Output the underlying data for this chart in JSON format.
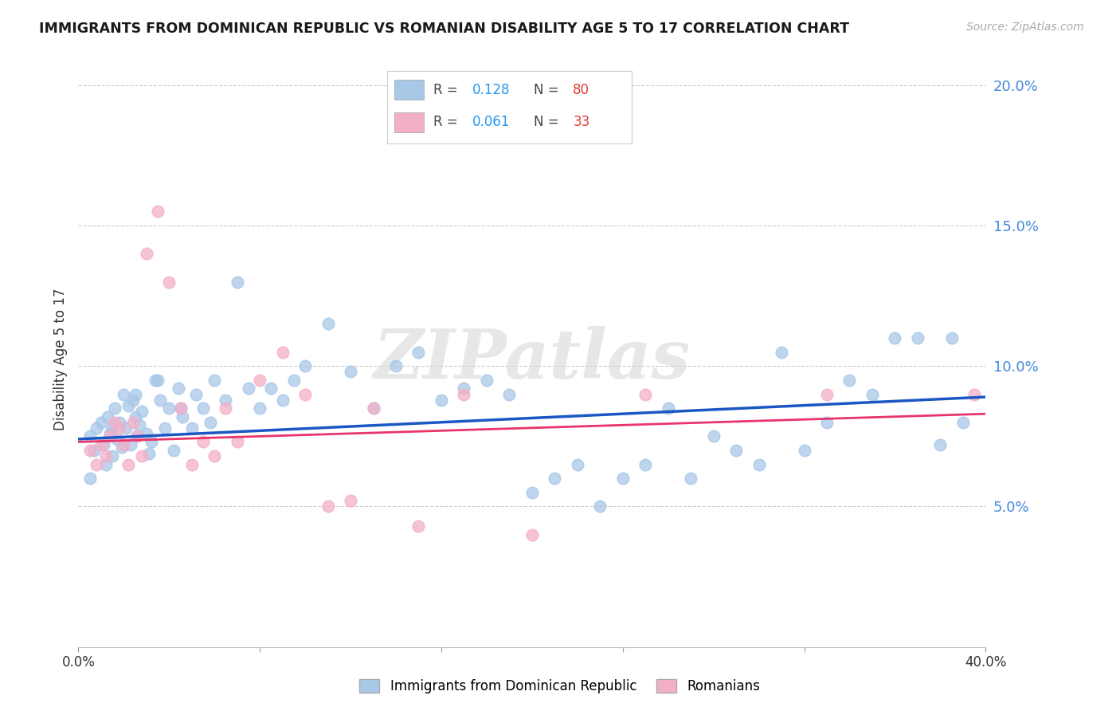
{
  "title": "IMMIGRANTS FROM DOMINICAN REPUBLIC VS ROMANIAN DISABILITY AGE 5 TO 17 CORRELATION CHART",
  "source": "Source: ZipAtlas.com",
  "ylabel": "Disability Age 5 to 17",
  "xlim": [
    0.0,
    0.4
  ],
  "ylim": [
    0.0,
    0.205
  ],
  "yticks": [
    0.05,
    0.1,
    0.15,
    0.2
  ],
  "ytick_labels": [
    "5.0%",
    "10.0%",
    "15.0%",
    "20.0%"
  ],
  "xtick_positions": [
    0.0,
    0.08,
    0.16,
    0.24,
    0.32,
    0.4
  ],
  "xtick_left": "0.0%",
  "xtick_right": "40.0%",
  "color_blue_scatter": "#a8c8e8",
  "color_pink_scatter": "#f4afc8",
  "color_blue_line": "#1a56c4",
  "color_pink_line": "#e8356a",
  "color_yaxis_text": "#4488dd",
  "color_r_value": "#2196F3",
  "color_n_value": "#e53935",
  "watermark": "ZIPatlas",
  "watermark_color": "#d8d8d8",
  "legend_label1": "Immigrants from Dominican Republic",
  "legend_label2": "Romanians",
  "blue_x": [
    0.005,
    0.007,
    0.008,
    0.01,
    0.011,
    0.012,
    0.013,
    0.014,
    0.015,
    0.016,
    0.017,
    0.018,
    0.019,
    0.02,
    0.021,
    0.022,
    0.023,
    0.024,
    0.025,
    0.026,
    0.027,
    0.028,
    0.03,
    0.031,
    0.032,
    0.034,
    0.036,
    0.038,
    0.04,
    0.042,
    0.044,
    0.046,
    0.05,
    0.052,
    0.055,
    0.058,
    0.06,
    0.065,
    0.07,
    0.075,
    0.08,
    0.085,
    0.09,
    0.095,
    0.1,
    0.11,
    0.12,
    0.13,
    0.14,
    0.15,
    0.16,
    0.17,
    0.18,
    0.19,
    0.2,
    0.21,
    0.22,
    0.23,
    0.24,
    0.25,
    0.26,
    0.27,
    0.28,
    0.29,
    0.3,
    0.31,
    0.32,
    0.33,
    0.34,
    0.35,
    0.36,
    0.37,
    0.38,
    0.385,
    0.39,
    0.005,
    0.015,
    0.025,
    0.035,
    0.045
  ],
  "blue_y": [
    0.075,
    0.07,
    0.078,
    0.08,
    0.072,
    0.065,
    0.082,
    0.076,
    0.068,
    0.085,
    0.074,
    0.08,
    0.071,
    0.09,
    0.078,
    0.086,
    0.072,
    0.088,
    0.082,
    0.075,
    0.079,
    0.084,
    0.076,
    0.069,
    0.073,
    0.095,
    0.088,
    0.078,
    0.085,
    0.07,
    0.092,
    0.082,
    0.078,
    0.09,
    0.085,
    0.08,
    0.095,
    0.088,
    0.13,
    0.092,
    0.085,
    0.092,
    0.088,
    0.095,
    0.1,
    0.115,
    0.098,
    0.085,
    0.1,
    0.105,
    0.088,
    0.092,
    0.095,
    0.09,
    0.055,
    0.06,
    0.065,
    0.05,
    0.06,
    0.065,
    0.085,
    0.06,
    0.075,
    0.07,
    0.065,
    0.105,
    0.07,
    0.08,
    0.095,
    0.09,
    0.11,
    0.11,
    0.072,
    0.11,
    0.08,
    0.06,
    0.078,
    0.09,
    0.095,
    0.085
  ],
  "pink_x": [
    0.005,
    0.008,
    0.01,
    0.012,
    0.014,
    0.016,
    0.018,
    0.02,
    0.022,
    0.024,
    0.026,
    0.028,
    0.03,
    0.035,
    0.04,
    0.045,
    0.05,
    0.055,
    0.06,
    0.065,
    0.07,
    0.08,
    0.09,
    0.1,
    0.11,
    0.12,
    0.13,
    0.15,
    0.17,
    0.2,
    0.25,
    0.33,
    0.395
  ],
  "pink_y": [
    0.07,
    0.065,
    0.072,
    0.068,
    0.075,
    0.08,
    0.078,
    0.072,
    0.065,
    0.08,
    0.075,
    0.068,
    0.14,
    0.155,
    0.13,
    0.085,
    0.065,
    0.073,
    0.068,
    0.085,
    0.073,
    0.095,
    0.105,
    0.09,
    0.05,
    0.052,
    0.085,
    0.043,
    0.09,
    0.04,
    0.09,
    0.09,
    0.09
  ],
  "line_blue_y0": 0.074,
  "line_blue_y1": 0.089,
  "line_pink_y0": 0.073,
  "line_pink_y1": 0.083
}
